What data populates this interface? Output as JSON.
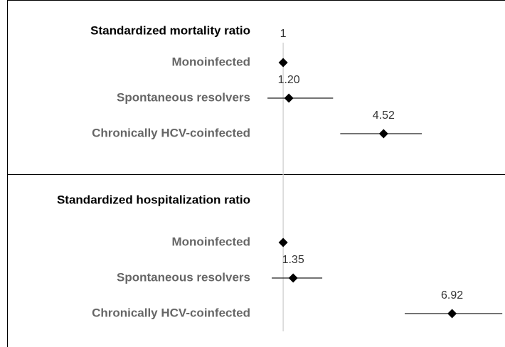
{
  "chart_data": {
    "type": "forest",
    "xlim": [
      0,
      8.7
    ],
    "reference": 1,
    "panels": [
      {
        "title": "Standardized mortality ratio",
        "categories": [
          "Monoinfected",
          "Spontaneous resolvers",
          "Chronically HCV-coinfected"
        ],
        "values": [
          1,
          1.2,
          4.52
        ],
        "ci_lower": [
          null,
          0.45,
          3.0
        ],
        "ci_upper": [
          null,
          2.75,
          5.86
        ],
        "value_labels": [
          null,
          "1.20",
          "4.52"
        ]
      },
      {
        "title": "Standardized hospitalization ratio",
        "categories": [
          "Monoinfected",
          "Spontaneous resolvers",
          "Chronically HCV-coinfected"
        ],
        "values": [
          1,
          1.35,
          6.92
        ],
        "ci_lower": [
          null,
          0.6,
          5.26
        ],
        "ci_upper": [
          null,
          2.37,
          8.68
        ],
        "value_labels": [
          null,
          "1.35",
          "6.92"
        ]
      }
    ]
  }
}
